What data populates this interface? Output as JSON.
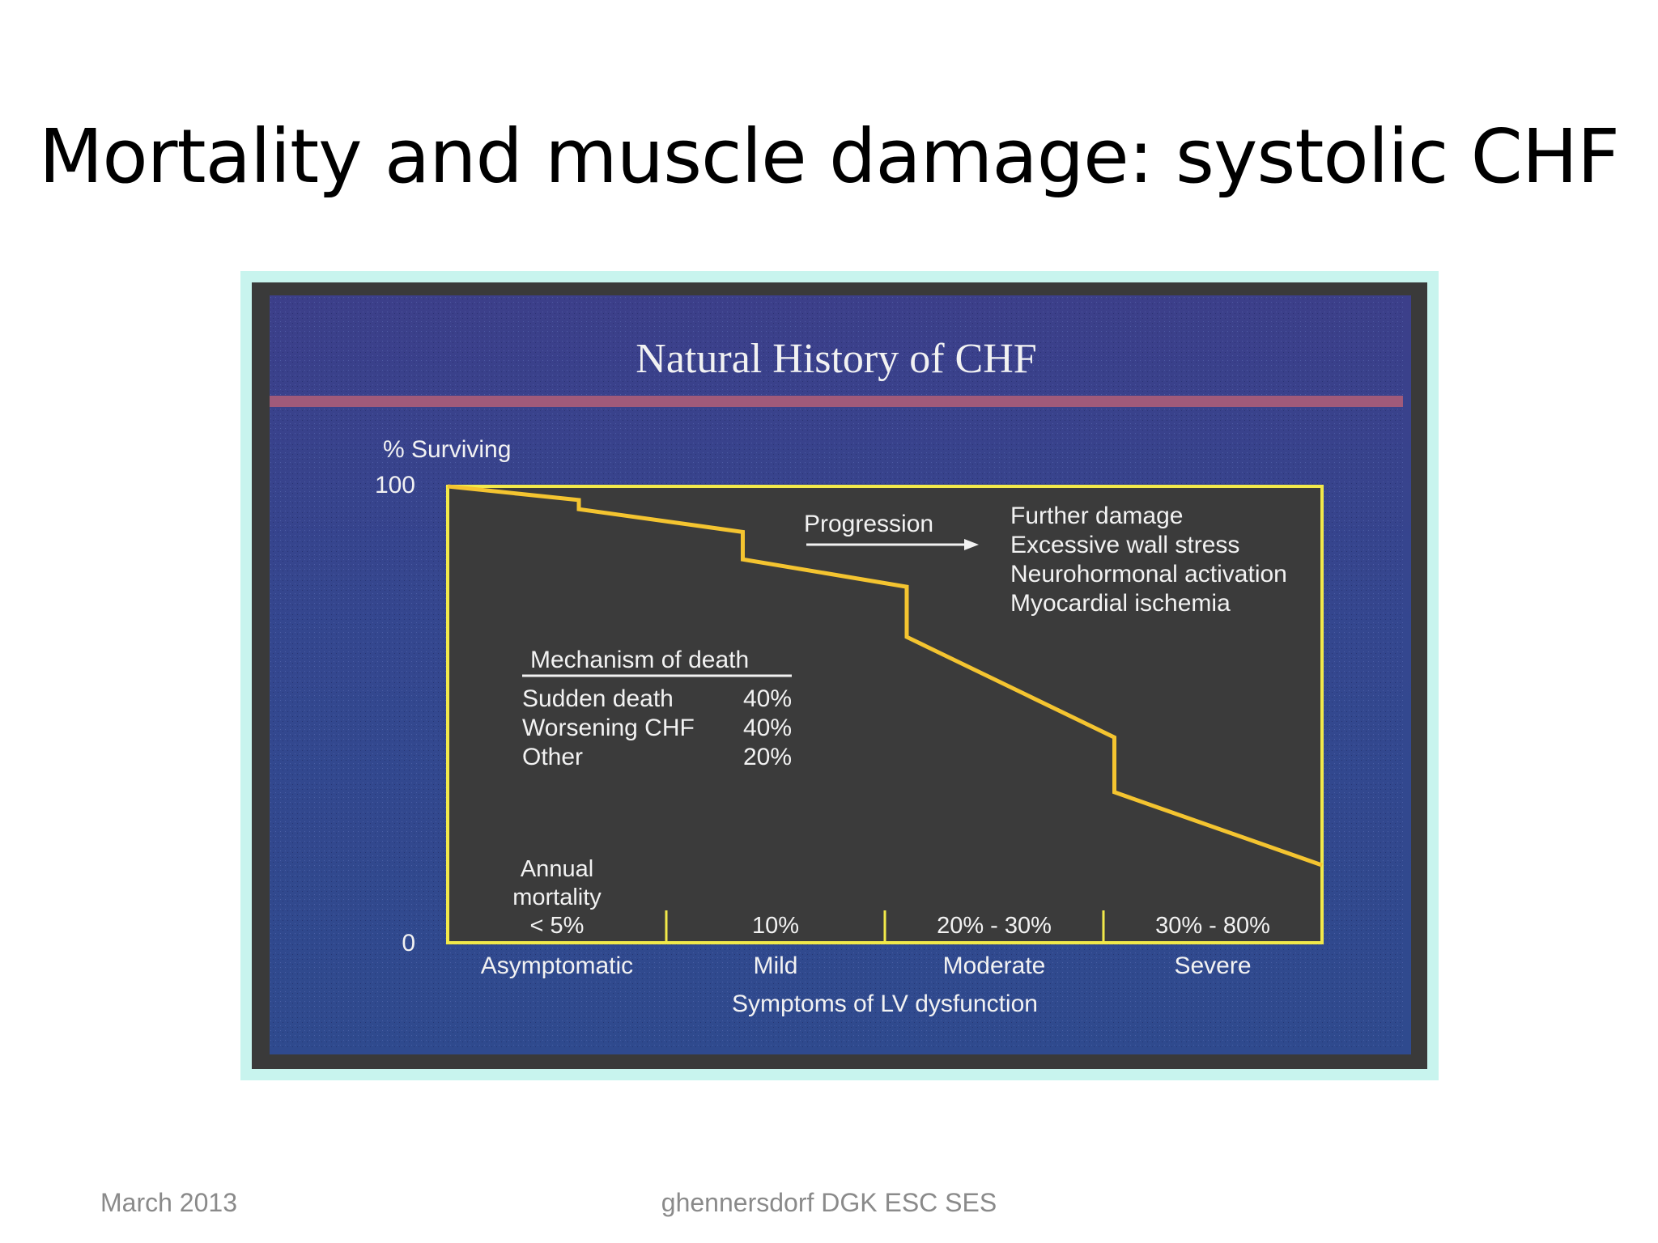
{
  "slide": {
    "title": "Mortality and muscle damage: systolic CHF",
    "footer_left": "March 2013",
    "footer_center": "ghennersdorf DGK ESC SES"
  },
  "colors": {
    "panel_blue": "#34478f",
    "curve_yellow": "#f4c430",
    "frame_yellow": "#f2e94a",
    "label_white": "#f2f2f2",
    "header_stripe": "#a05a7a",
    "frame_cyan": "#c8f4ee"
  },
  "chart_data": {
    "type": "line",
    "title": "Natural History of CHF",
    "ylabel": "% Surviving",
    "xlabel": "Symptoms of LV dysfunction",
    "ylim": [
      0,
      100
    ],
    "y_ticks": [
      "0",
      "100"
    ],
    "categories": [
      "Asymptomatic",
      "Mild",
      "Moderate",
      "Severe"
    ],
    "annual_mortality": [
      "Annual\nmortality\n< 5%",
      "10%",
      "20% - 30%",
      "30% - 80%"
    ],
    "series": [
      {
        "x": [
          0,
          0.6,
          0.6,
          1.35,
          1.35,
          2.1,
          2.1,
          3.05,
          3.05,
          4.0
        ],
        "y": [
          100,
          97,
          95,
          90,
          84,
          78,
          67,
          45,
          33,
          17
        ]
      }
    ],
    "progression": {
      "label": "Progression",
      "factors": [
        "Further damage",
        "Excessive wall stress",
        "Neurohormonal activation",
        "Myocardial ischemia"
      ]
    },
    "mechanism_of_death": {
      "heading": "Mechanism of death",
      "rows": [
        {
          "cause": "Sudden death",
          "percent": "40%"
        },
        {
          "cause": "Worsening CHF",
          "percent": "40%"
        },
        {
          "cause": "Other",
          "percent": "20%"
        }
      ]
    }
  }
}
